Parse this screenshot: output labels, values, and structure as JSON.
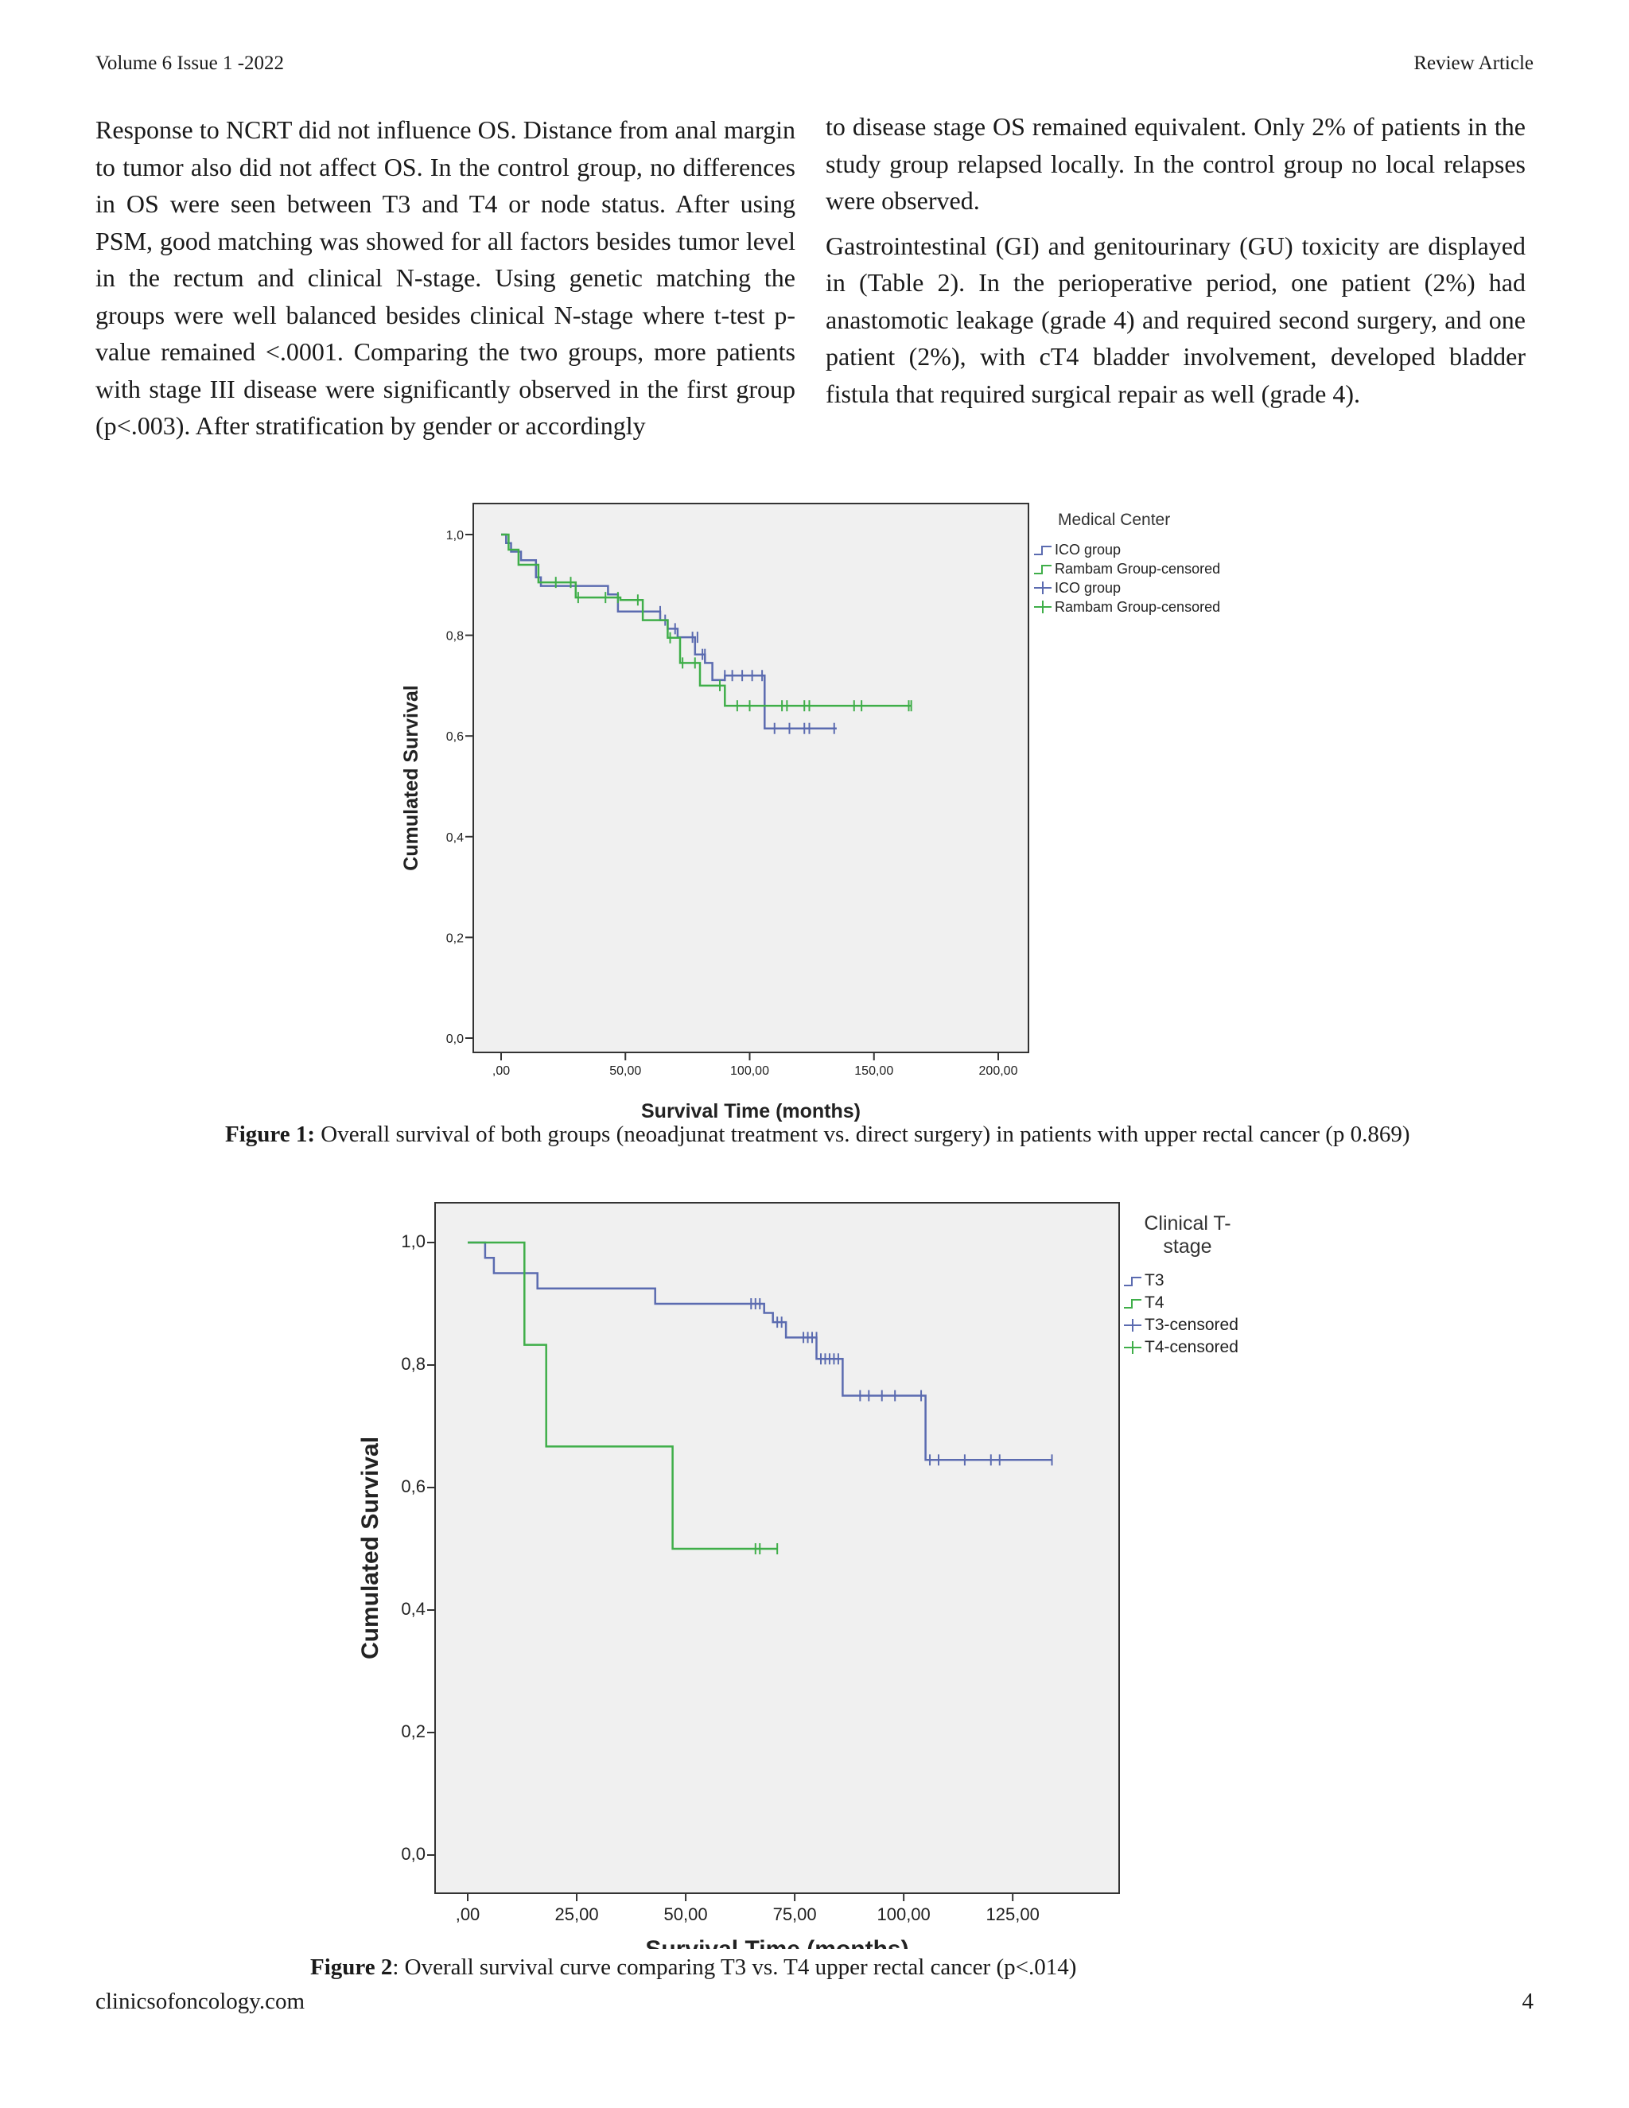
{
  "header": {
    "left": "Volume 6 Issue 1 -2022",
    "right": "Review Article"
  },
  "body": {
    "left_column": "Response to NCRT did not influence OS. Distance from anal margin to tumor also did not affect OS. In the control group, no differences in OS were seen between T3 and T4 or node status. After using PSM, good matching was showed for all factors besides tumor level in the rectum and clinical N-stage. Using genetic matching the groups were well balanced besides clinical N-stage where t-test p-value remained <.0001. Comparing the two groups, more patients with stage III disease were significantly observed in the first group (p<.003). After stratification by gender or accordingly",
    "right_column_p1": "to disease stage OS remained equivalent. Only 2% of patients in the study group relapsed locally. In the control group no local relapses were observed.",
    "right_column_p2": "Gastrointestinal (GI) and genitourinary (GU) toxicity are displayed in (Table 2). In the perioperative period, one patient (2%) had anastomotic leakage (grade 4) and required second surgery, and one patient (2%), with cT4 bladder involvement, developed bladder fistula that required surgical repair as well (grade 4)."
  },
  "figure1": {
    "caption_label": "Figure 1:",
    "caption_text": " Overall survival of both groups (neoadjunat treatment vs. direct surgery) in patients with upper rectal cancer (p 0.869)"
  },
  "figure2": {
    "caption_label": "Figure 2",
    "caption_text": ": Overall survival curve comparing T3 vs. T4 upper rectal cancer (p<.014)"
  },
  "footer": {
    "left": "clinicsofoncology.com",
    "right": "4"
  },
  "chart_data": [
    {
      "type": "line",
      "step": true,
      "xlabel": "Survival Time (months)",
      "ylabel": "Cumulated Survival",
      "xlim": [
        0,
        200
      ],
      "ylim": [
        0,
        1.0
      ],
      "xticks": [
        0,
        50,
        100,
        150,
        200
      ],
      "xtick_labels": [
        ",00",
        "50,00",
        "100,00",
        "150,00",
        "200,00"
      ],
      "yticks": [
        0,
        0.2,
        0.4,
        0.6,
        0.8,
        1.0
      ],
      "ytick_labels": [
        "0,0",
        "0,2",
        "0,4",
        "0,6",
        "0,8",
        "1,0"
      ],
      "legend_title": "Medical Center",
      "legend": [
        "ICO group",
        "Rambam Group-censored",
        "ICO group",
        "Rambam Group-censored"
      ],
      "legend_colors": [
        "#5b6bb0",
        "#3fae49",
        "#5b6bb0",
        "#3fae49"
      ],
      "legend_marker": [
        "line",
        "line",
        "cross",
        "cross"
      ],
      "series": [
        {
          "name": "ICO group",
          "color": "#5b6bb0",
          "steps": [
            [
              0,
              1.0
            ],
            [
              2,
              1.0
            ],
            [
              2,
              0.983
            ],
            [
              4,
              0.983
            ],
            [
              4,
              0.966
            ],
            [
              8,
              0.966
            ],
            [
              8,
              0.949
            ],
            [
              14,
              0.949
            ],
            [
              14,
              0.915
            ],
            [
              16,
              0.915
            ],
            [
              16,
              0.898
            ],
            [
              43,
              0.898
            ],
            [
              43,
              0.881
            ],
            [
              47,
              0.881
            ],
            [
              47,
              0.847
            ],
            [
              64,
              0.847
            ],
            [
              64,
              0.83
            ],
            [
              67,
              0.83
            ],
            [
              67,
              0.813
            ],
            [
              71,
              0.813
            ],
            [
              71,
              0.796
            ],
            [
              78,
              0.796
            ],
            [
              78,
              0.762
            ],
            [
              82,
              0.762
            ],
            [
              82,
              0.745
            ],
            [
              85,
              0.745
            ],
            [
              85,
              0.711
            ],
            [
              90,
              0.711
            ],
            [
              90,
              0.72
            ],
            [
              106,
              0.72
            ],
            [
              106,
              0.615
            ],
            [
              135,
              0.615
            ]
          ],
          "censored": [
            [
              64,
              0.847
            ],
            [
              66,
              0.83
            ],
            [
              70,
              0.813
            ],
            [
              77,
              0.796
            ],
            [
              79,
              0.796
            ],
            [
              81,
              0.762
            ],
            [
              82,
              0.762
            ],
            [
              90,
              0.72
            ],
            [
              93,
              0.72
            ],
            [
              97,
              0.72
            ],
            [
              101,
              0.72
            ],
            [
              105,
              0.72
            ],
            [
              110,
              0.615
            ],
            [
              116,
              0.615
            ],
            [
              122,
              0.615
            ],
            [
              124,
              0.615
            ],
            [
              134,
              0.615
            ]
          ]
        },
        {
          "name": "Rambam Group-censored",
          "color": "#3fae49",
          "steps": [
            [
              0,
              1.0
            ],
            [
              3,
              1.0
            ],
            [
              3,
              0.97
            ],
            [
              7,
              0.97
            ],
            [
              7,
              0.94
            ],
            [
              15,
              0.94
            ],
            [
              15,
              0.905
            ],
            [
              30,
              0.905
            ],
            [
              30,
              0.875
            ],
            [
              48,
              0.875
            ],
            [
              48,
              0.87
            ],
            [
              57,
              0.87
            ],
            [
              57,
              0.83
            ],
            [
              67,
              0.83
            ],
            [
              67,
              0.795
            ],
            [
              72,
              0.795
            ],
            [
              72,
              0.745
            ],
            [
              80,
              0.745
            ],
            [
              80,
              0.7
            ],
            [
              90,
              0.7
            ],
            [
              90,
              0.66
            ],
            [
              165,
              0.66
            ]
          ],
          "censored": [
            [
              22,
              0.905
            ],
            [
              28,
              0.905
            ],
            [
              31,
              0.875
            ],
            [
              42,
              0.875
            ],
            [
              47,
              0.875
            ],
            [
              55,
              0.87
            ],
            [
              68,
              0.795
            ],
            [
              73,
              0.745
            ],
            [
              78,
              0.745
            ],
            [
              88,
              0.7
            ],
            [
              95,
              0.66
            ],
            [
              100,
              0.66
            ],
            [
              113,
              0.66
            ],
            [
              115,
              0.66
            ],
            [
              122,
              0.66
            ],
            [
              124,
              0.66
            ],
            [
              142,
              0.66
            ],
            [
              145,
              0.66
            ],
            [
              164,
              0.66
            ],
            [
              165,
              0.66
            ]
          ]
        }
      ]
    },
    {
      "type": "line",
      "step": true,
      "xlabel": "Survival Time (months)",
      "ylabel": "Cumulated Survival",
      "xlim": [
        0,
        135
      ],
      "ylim": [
        0,
        1.0
      ],
      "xticks": [
        0,
        25,
        50,
        75,
        100,
        125
      ],
      "xtick_labels": [
        ",00",
        "25,00",
        "50,00",
        "75,00",
        "100,00",
        "125,00"
      ],
      "yticks": [
        0,
        0.2,
        0.4,
        0.6,
        0.8,
        1.0
      ],
      "ytick_labels": [
        "0,0",
        "0,2",
        "0,4",
        "0,6",
        "0,8",
        "1,0"
      ],
      "legend_title": [
        "Clinical T-",
        "stage"
      ],
      "legend": [
        "T3",
        "T4",
        "T3-censored",
        "T4-censored"
      ],
      "legend_colors": [
        "#5b6bb0",
        "#3fae49",
        "#5b6bb0",
        "#3fae49"
      ],
      "legend_marker": [
        "line",
        "line",
        "cross",
        "cross"
      ],
      "series": [
        {
          "name": "T3",
          "color": "#5b6bb0",
          "steps": [
            [
              0,
              1.0
            ],
            [
              4,
              1.0
            ],
            [
              4,
              0.975
            ],
            [
              6,
              0.975
            ],
            [
              6,
              0.95
            ],
            [
              16,
              0.95
            ],
            [
              16,
              0.925
            ],
            [
              43,
              0.925
            ],
            [
              43,
              0.9
            ],
            [
              68,
              0.9
            ],
            [
              68,
              0.885
            ],
            [
              70,
              0.885
            ],
            [
              70,
              0.87
            ],
            [
              73,
              0.87
            ],
            [
              73,
              0.845
            ],
            [
              80,
              0.845
            ],
            [
              80,
              0.81
            ],
            [
              86,
              0.81
            ],
            [
              86,
              0.75
            ],
            [
              105,
              0.75
            ],
            [
              105,
              0.645
            ],
            [
              134,
              0.645
            ]
          ],
          "censored": [
            [
              65,
              0.9
            ],
            [
              66,
              0.9
            ],
            [
              67,
              0.9
            ],
            [
              71,
              0.87
            ],
            [
              72,
              0.87
            ],
            [
              77,
              0.845
            ],
            [
              78,
              0.845
            ],
            [
              79,
              0.845
            ],
            [
              80,
              0.845
            ],
            [
              81,
              0.81
            ],
            [
              82,
              0.81
            ],
            [
              83,
              0.81
            ],
            [
              84,
              0.81
            ],
            [
              85,
              0.81
            ],
            [
              90,
              0.75
            ],
            [
              92,
              0.75
            ],
            [
              95,
              0.75
            ],
            [
              98,
              0.75
            ],
            [
              104,
              0.75
            ],
            [
              106,
              0.645
            ],
            [
              108,
              0.645
            ],
            [
              114,
              0.645
            ],
            [
              120,
              0.645
            ],
            [
              122,
              0.645
            ],
            [
              134,
              0.645
            ]
          ]
        },
        {
          "name": "T4",
          "color": "#3fae49",
          "steps": [
            [
              0,
              1.0
            ],
            [
              13,
              1.0
            ],
            [
              13,
              0.833
            ],
            [
              18,
              0.833
            ],
            [
              18,
              0.667
            ],
            [
              47,
              0.667
            ],
            [
              47,
              0.5
            ],
            [
              71,
              0.5
            ]
          ],
          "censored": [
            [
              66,
              0.5
            ],
            [
              67,
              0.5
            ],
            [
              71,
              0.5
            ]
          ]
        }
      ]
    }
  ]
}
